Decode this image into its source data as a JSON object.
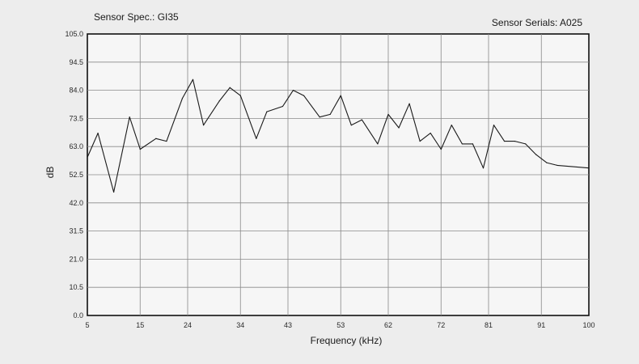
{
  "chart_data": {
    "type": "line",
    "title": "Sensor Spec.: GI35",
    "subtitle": "Sensor Serials: A025",
    "xlabel": "Frequency (kHz)",
    "ylabel": "dB",
    "xlim": [
      5,
      100
    ],
    "ylim": [
      0,
      105
    ],
    "x_ticks": [
      "5",
      "15",
      "24",
      "34",
      "43",
      "53",
      "62",
      "72",
      "81",
      "91",
      "100"
    ],
    "y_ticks": [
      "0.0",
      "10.5",
      "21.0",
      "31.5",
      "42.0",
      "52.5",
      "63.0",
      "73.5",
      "84.0",
      "94.5",
      "105.0"
    ],
    "grid": true,
    "series": [
      {
        "x": [
          5,
          7,
          10,
          13,
          15,
          18,
          20,
          23,
          25,
          27,
          30,
          32,
          34,
          37,
          39,
          42,
          44,
          46,
          49,
          51,
          53,
          55,
          57,
          60,
          62,
          64,
          66,
          68,
          70,
          72,
          74,
          76,
          78,
          80,
          82,
          84,
          86,
          88,
          90,
          92,
          94,
          100
        ],
        "y": [
          59,
          68,
          46,
          74,
          62,
          66,
          65,
          81,
          88,
          71,
          80,
          85,
          82,
          66,
          76,
          78,
          84,
          82,
          74,
          75,
          82,
          71,
          73,
          64,
          75,
          70,
          79,
          65,
          68,
          62,
          71,
          64,
          64,
          55,
          71,
          65,
          65,
          64,
          60,
          57,
          56,
          55
        ]
      }
    ]
  }
}
